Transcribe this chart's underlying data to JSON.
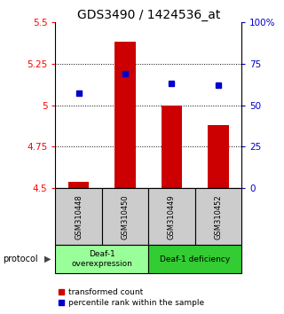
{
  "title": "GDS3490 / 1424536_at",
  "categories": [
    "GSM310448",
    "GSM310450",
    "GSM310449",
    "GSM310452"
  ],
  "bar_values": [
    4.54,
    5.38,
    5.0,
    4.88
  ],
  "bar_base": 4.5,
  "blue_values": [
    5.07,
    5.19,
    5.13,
    5.12
  ],
  "ylim_left": [
    4.5,
    5.5
  ],
  "ylim_right": [
    0,
    100
  ],
  "yticks_left": [
    4.5,
    4.75,
    5.0,
    5.25,
    5.5
  ],
  "ytick_labels_left": [
    "4.5",
    "4.75",
    "5",
    "5.25",
    "5.5"
  ],
  "yticks_right": [
    0,
    25,
    50,
    75,
    100
  ],
  "ytick_labels_right": [
    "0",
    "25",
    "50",
    "75",
    "100%"
  ],
  "bar_color": "#cc0000",
  "blue_color": "#0000cc",
  "bg_color": "#ffffff",
  "plot_bg": "#ffffff",
  "group1_label": "Deaf-1\noverexpression",
  "group2_label": "Deaf-1 deficiency",
  "group1_color": "#99ff99",
  "group2_color": "#33cc33",
  "sample_box_color": "#cccccc",
  "protocol_label": "protocol",
  "legend_red_label": "transformed count",
  "legend_blue_label": "percentile rank within the sample",
  "title_fontsize": 10,
  "tick_fontsize": 7.5,
  "sample_fontsize": 6.0,
  "proto_fontsize": 6.5,
  "legend_fontsize": 6.5
}
